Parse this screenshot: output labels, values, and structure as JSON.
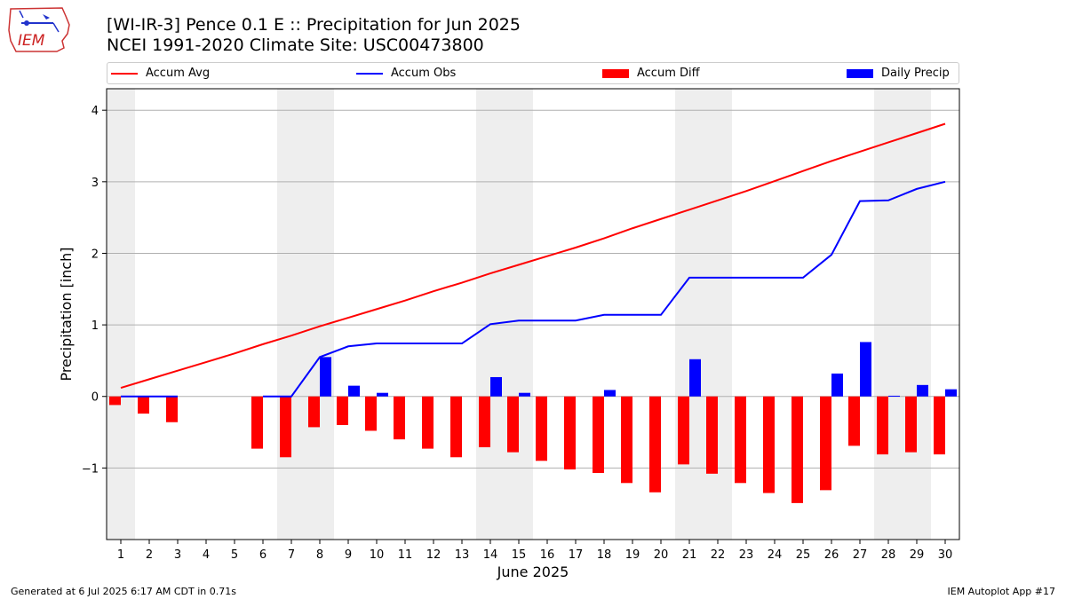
{
  "header": {
    "line1": "[WI-IR-3] Pence 0.1 E :: Precipitation for Jun 2025",
    "line2": "NCEI 1991-2020 Climate Site: USC00473800"
  },
  "logo": {
    "text": "IEM"
  },
  "footer": {
    "left": "Generated at 6 Jul 2025 6:17 AM CDT in 0.71s",
    "right": "IEM Autoplot App #17"
  },
  "colors": {
    "avg": "#ff0000",
    "obs": "#0000ff",
    "diff": "#ff0000",
    "daily": "#0000ff",
    "weekend_shade": "#eeeeee",
    "grid": "#b0b0b0"
  },
  "chart_data": {
    "type": "bar",
    "xlabel": "June 2025",
    "ylabel": "Precipitation [inch]",
    "ylim": [
      -2.0,
      4.3
    ],
    "yticks": [
      -1,
      0,
      1,
      2,
      3,
      4
    ],
    "ytick_labels": [
      "−1",
      "0",
      "1",
      "2",
      "3",
      "4"
    ],
    "grid": "horizontal",
    "legend_position": "top",
    "days": [
      1,
      2,
      3,
      4,
      5,
      6,
      7,
      8,
      9,
      10,
      11,
      12,
      13,
      14,
      15,
      16,
      17,
      18,
      19,
      20,
      21,
      22,
      23,
      24,
      25,
      26,
      27,
      28,
      29,
      30
    ],
    "shaded_days": [
      1,
      7,
      8,
      14,
      15,
      21,
      22,
      28,
      29
    ],
    "series": [
      {
        "name": "Accum Avg",
        "type": "line",
        "values": [
          0.12,
          0.24,
          0.36,
          0.48,
          0.6,
          0.73,
          0.85,
          0.98,
          1.1,
          1.22,
          1.34,
          1.47,
          1.59,
          1.72,
          1.84,
          1.96,
          2.08,
          2.21,
          2.35,
          2.48,
          2.61,
          2.74,
          2.87,
          3.01,
          3.15,
          3.29,
          3.42,
          3.55,
          3.68,
          3.81
        ]
      },
      {
        "name": "Accum Obs",
        "type": "line",
        "values": [
          0.0,
          0.0,
          0.0,
          null,
          null,
          0.0,
          0.0,
          0.55,
          0.7,
          0.74,
          0.74,
          0.74,
          0.74,
          1.01,
          1.06,
          1.06,
          1.06,
          1.14,
          1.14,
          1.14,
          1.66,
          1.66,
          1.66,
          1.66,
          1.66,
          1.98,
          2.73,
          2.74,
          2.9,
          3.0
        ]
      },
      {
        "name": "Accum Diff",
        "type": "bar",
        "values": [
          -0.12,
          -0.24,
          -0.36,
          null,
          null,
          -0.73,
          -0.85,
          -0.43,
          -0.4,
          -0.48,
          -0.6,
          -0.73,
          -0.85,
          -0.71,
          -0.78,
          -0.9,
          -1.02,
          -1.07,
          -1.21,
          -1.34,
          -0.95,
          -1.08,
          -1.21,
          -1.35,
          -1.49,
          -1.31,
          -0.69,
          -0.81,
          -0.78,
          -0.81
        ]
      },
      {
        "name": "Daily Precip",
        "type": "bar",
        "values": [
          0.0,
          0.0,
          0.0,
          null,
          null,
          0.0,
          0.0,
          0.55,
          0.15,
          0.05,
          0.0,
          0.0,
          0.0,
          0.27,
          0.05,
          0.0,
          0.0,
          0.09,
          0.0,
          0.0,
          0.52,
          0.0,
          0.0,
          0.0,
          0.0,
          0.32,
          0.76,
          0.01,
          0.16,
          0.1
        ]
      }
    ]
  }
}
